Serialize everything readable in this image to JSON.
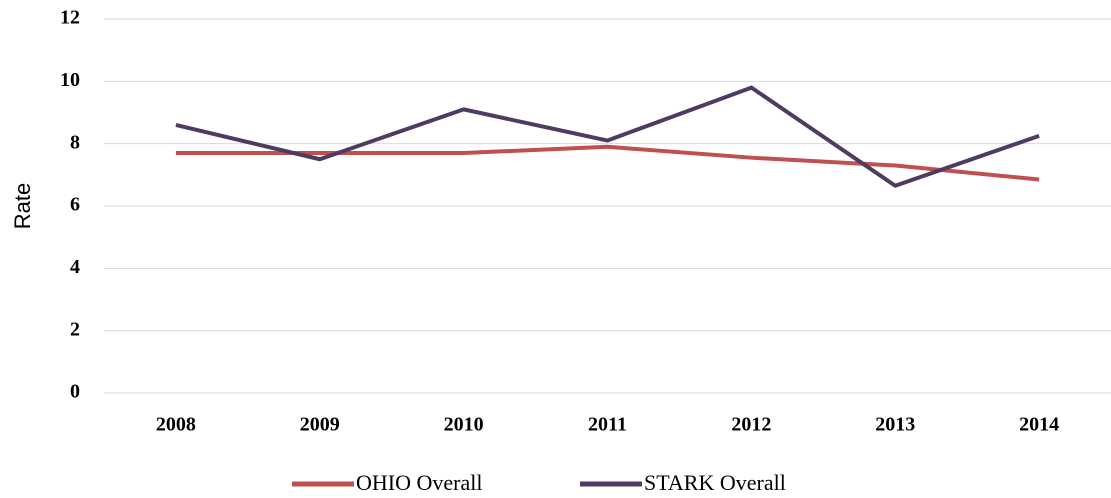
{
  "chart_data": {
    "type": "line",
    "y_label": "Rate",
    "categories": [
      "2008",
      "2009",
      "2010",
      "2011",
      "2012",
      "2013",
      "2014"
    ],
    "series": [
      {
        "name": "OHIO Overall",
        "color": "#c0504d",
        "values": [
          7.7,
          7.7,
          7.7,
          7.9,
          7.55,
          7.3,
          6.85
        ]
      },
      {
        "name": "STARK Overall",
        "color": "#4f3b62",
        "values": [
          8.6,
          7.5,
          9.1,
          8.1,
          9.8,
          6.65,
          8.25
        ]
      }
    ],
    "ylim": [
      0,
      12
    ],
    "yticks": [
      0,
      2,
      4,
      6,
      8,
      10,
      12
    ],
    "grid": true,
    "legend": "bottom"
  }
}
